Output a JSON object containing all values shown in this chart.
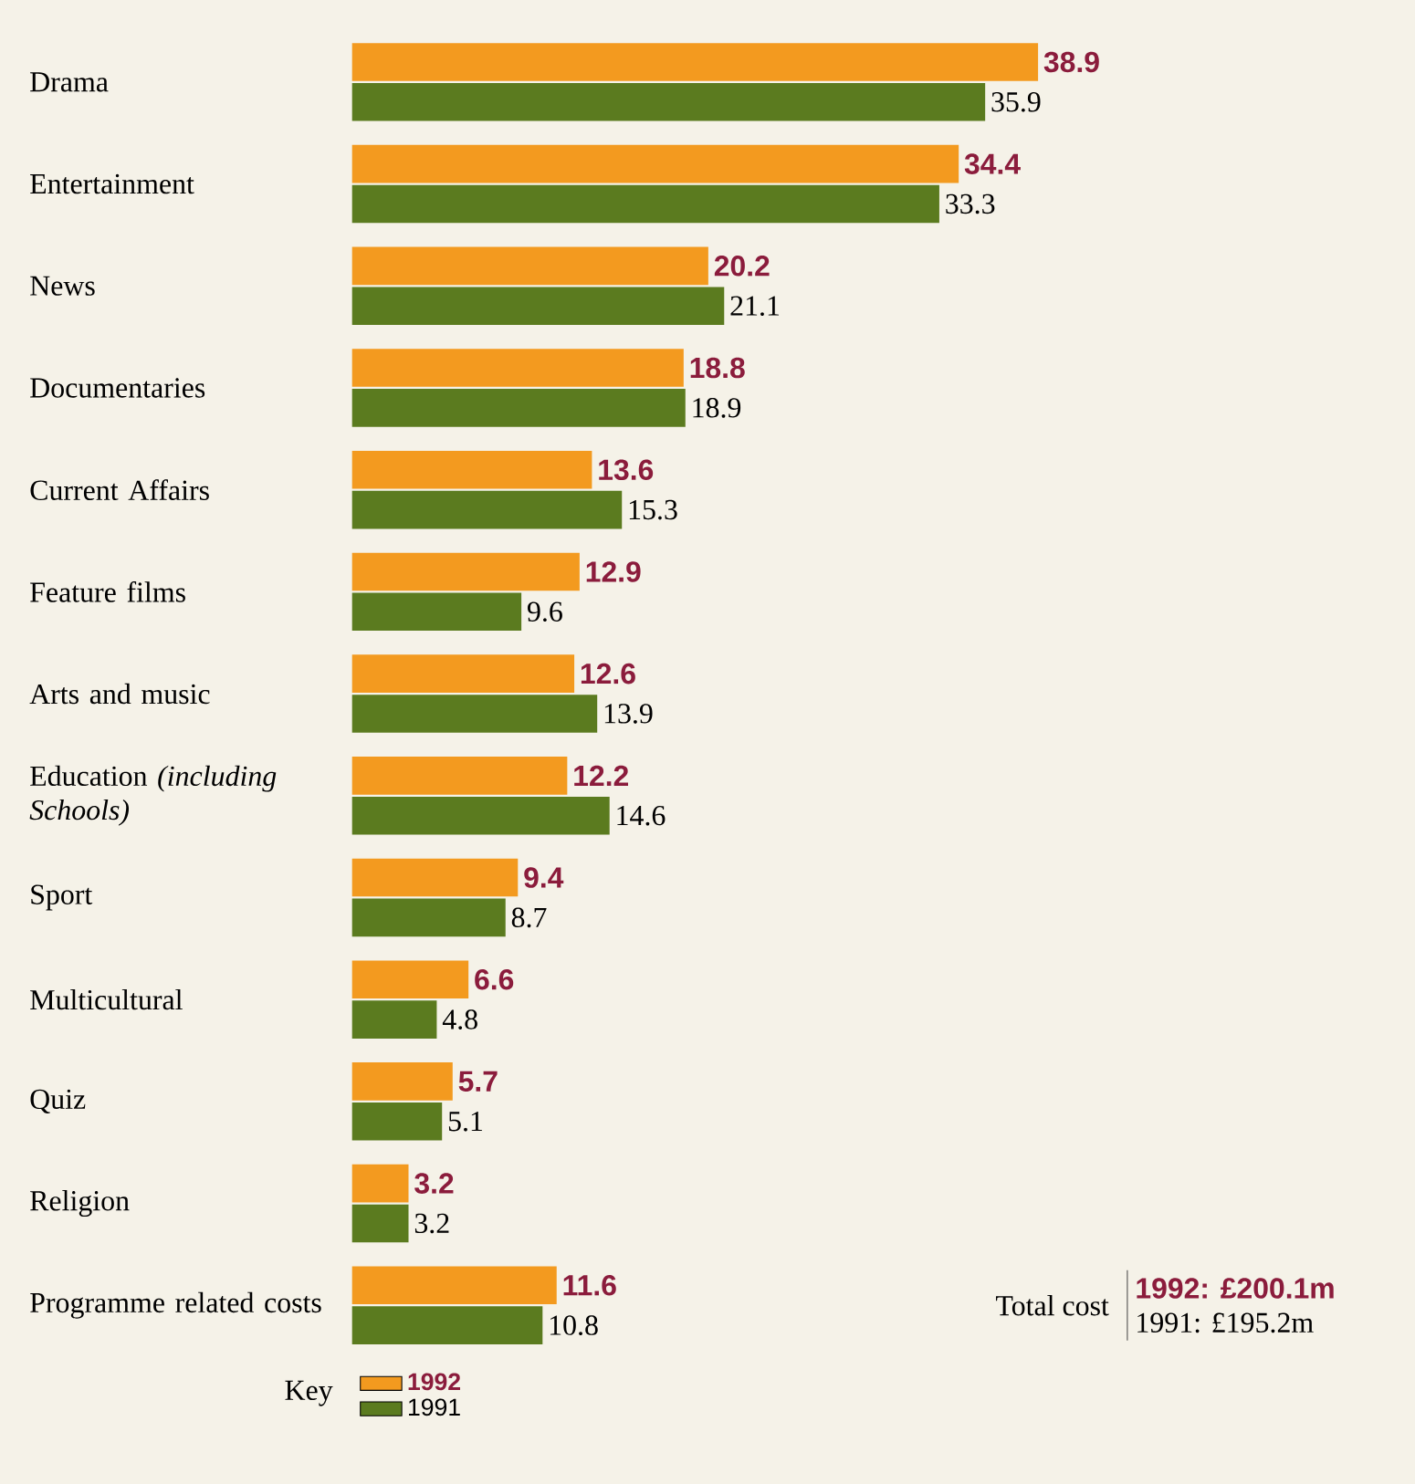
{
  "chart_data": {
    "type": "bar",
    "orientation": "horizontal",
    "categories": [
      "Drama",
      "Entertainment",
      "News",
      "Documentaries",
      "Current Affairs",
      "Feature films",
      "Arts and music",
      "Education *(including Schools)*",
      "Sport",
      "Multicultural",
      "Quiz",
      "Religion",
      "Programme related costs"
    ],
    "series": [
      {
        "name": "1992",
        "color": "#f39a1f",
        "values": [
          38.9,
          34.4,
          20.2,
          18.8,
          13.6,
          12.9,
          12.6,
          12.2,
          9.4,
          6.6,
          5.7,
          3.2,
          11.6
        ]
      },
      {
        "name": "1991",
        "color": "#5b7b1f",
        "values": [
          35.9,
          33.3,
          21.1,
          18.9,
          15.3,
          9.6,
          13.9,
          14.6,
          8.7,
          4.8,
          5.1,
          3.2,
          10.8
        ]
      }
    ],
    "data_labels": true,
    "legend": "bottom left",
    "legend_title": "Key",
    "annotations": [
      "Total cost",
      "1992: £200.1m",
      "1991: £195.2m"
    ]
  }
}
